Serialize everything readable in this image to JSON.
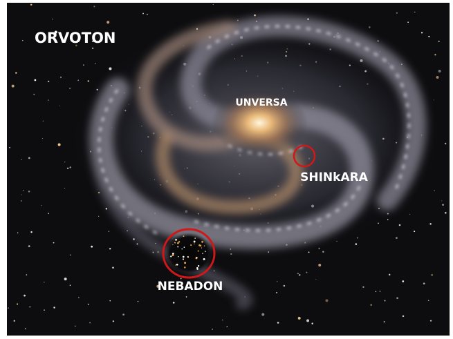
{
  "labels": {
    "orvoton": "ORVOTON",
    "unversa": "UNVERSA",
    "shinkara": "SHINkARA",
    "nebadon": "NEBADON"
  }
}
